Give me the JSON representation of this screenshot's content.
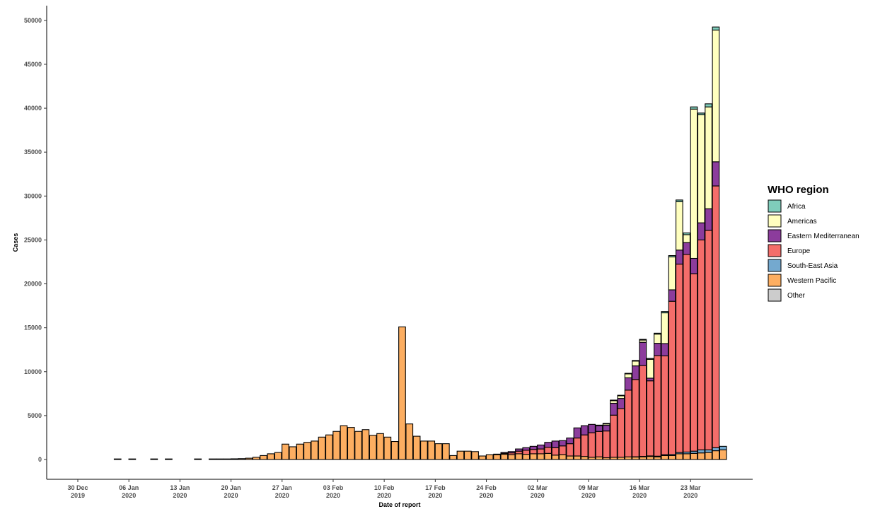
{
  "chart_data": {
    "type": "bar",
    "stacked": true,
    "xlabel": "Date of report",
    "ylabel": "Cases",
    "ylim": [
      0,
      52000
    ],
    "y_ticks": [
      0,
      5000,
      10000,
      15000,
      20000,
      25000,
      30000,
      35000,
      40000,
      45000,
      50000
    ],
    "x_ticks": [
      {
        "day": 0,
        "line1": "30 Dec",
        "line2": "2019"
      },
      {
        "day": 7,
        "line1": "06 Jan",
        "line2": "2020"
      },
      {
        "day": 14,
        "line1": "13 Jan",
        "line2": "2020"
      },
      {
        "day": 21,
        "line1": "20 Jan",
        "line2": "2020"
      },
      {
        "day": 28,
        "line1": "27 Jan",
        "line2": "2020"
      },
      {
        "day": 35,
        "line1": "03 Feb",
        "line2": "2020"
      },
      {
        "day": 42,
        "line1": "10 Feb",
        "line2": "2020"
      },
      {
        "day": 49,
        "line1": "17 Feb",
        "line2": "2020"
      },
      {
        "day": 56,
        "line1": "24 Feb",
        "line2": "2020"
      },
      {
        "day": 63,
        "line1": "02 Mar",
        "line2": "2020"
      },
      {
        "day": 70,
        "line1": "09 Mar",
        "line2": "2020"
      },
      {
        "day": 77,
        "line1": "16 Mar",
        "line2": "2020"
      },
      {
        "day": 84,
        "line1": "23 Mar",
        "line2": "2020"
      }
    ],
    "legend": {
      "title": "WHO region",
      "position": "right",
      "entries": [
        "Africa",
        "Americas",
        "Eastern Mediterranean",
        "Europe",
        "South-East Asia",
        "Western Pacific",
        "Other"
      ]
    },
    "colors": {
      "Africa": "#7fcdbb",
      "Americas": "#ffffbf",
      "Eastern Mediterranean": "#8c3c9c",
      "Europe": "#f46d6a",
      "South-East Asia": "#74a9cf",
      "Western Pacific": "#fdae61",
      "Other": "#cccccc"
    },
    "stack_order": [
      "Western Pacific",
      "South-East Asia",
      "Europe",
      "Eastern Mediterranean",
      "Americas",
      "Africa",
      "Other"
    ],
    "series_days": [
      4,
      6,
      9,
      11,
      15,
      17,
      18,
      19,
      20,
      21,
      22,
      23,
      24,
      25,
      26,
      27,
      28,
      29,
      30,
      31,
      32,
      33,
      34,
      35,
      36,
      37,
      38,
      39,
      40,
      41,
      42,
      43,
      44,
      45,
      46,
      47,
      48,
      49,
      50,
      51,
      52,
      53,
      54,
      55,
      56,
      57,
      58,
      59,
      60,
      61,
      62,
      63,
      64,
      65,
      66,
      67,
      68,
      69,
      70,
      71,
      72,
      73,
      74,
      75,
      76,
      77,
      78,
      79,
      80,
      81,
      82,
      83,
      84,
      85,
      86,
      87
    ],
    "series": [
      {
        "name": "Western Pacific",
        "values": [
          3,
          3,
          5,
          5,
          5,
          20,
          30,
          50,
          80,
          100,
          150,
          250,
          450,
          650,
          800,
          1750,
          1450,
          1750,
          1950,
          2100,
          2550,
          2800,
          3200,
          3850,
          3650,
          3200,
          3400,
          2750,
          2950,
          2550,
          2050,
          15100,
          4050,
          2650,
          2100,
          2100,
          1800,
          1800,
          450,
          950,
          950,
          900,
          400,
          550,
          550,
          600,
          550,
          650,
          600,
          650,
          650,
          700,
          500,
          550,
          400,
          400,
          350,
          250,
          300,
          200,
          250,
          250,
          300,
          280,
          300,
          350,
          300,
          450,
          450,
          650,
          650,
          700,
          750,
          800,
          1000,
          1100
        ]
      },
      {
        "name": "South-East Asia",
        "values": [
          0,
          0,
          0,
          0,
          0,
          0,
          0,
          0,
          0,
          0,
          0,
          0,
          0,
          0,
          0,
          0,
          0,
          0,
          0,
          0,
          0,
          0,
          0,
          0,
          0,
          0,
          0,
          0,
          0,
          0,
          0,
          0,
          0,
          0,
          0,
          0,
          0,
          0,
          0,
          0,
          0,
          0,
          0,
          0,
          0,
          0,
          0,
          0,
          0,
          0,
          0,
          0,
          0,
          0,
          0,
          0,
          0,
          0,
          0,
          0,
          0,
          0,
          0,
          30,
          50,
          60,
          80,
          100,
          120,
          150,
          200,
          250,
          350,
          300,
          350,
          400
        ]
      },
      {
        "name": "Europe",
        "values": [
          0,
          0,
          0,
          0,
          0,
          0,
          0,
          0,
          0,
          0,
          0,
          0,
          0,
          0,
          0,
          0,
          0,
          0,
          0,
          0,
          0,
          0,
          0,
          0,
          0,
          0,
          0,
          0,
          0,
          0,
          0,
          0,
          0,
          0,
          0,
          0,
          0,
          0,
          0,
          0,
          0,
          0,
          0,
          0,
          0,
          100,
          200,
          300,
          450,
          500,
          550,
          700,
          850,
          1000,
          1400,
          2050,
          2450,
          2800,
          2900,
          3050,
          4800,
          5550,
          7600,
          8800,
          10350,
          8550,
          11450,
          11250,
          17450,
          21450,
          22500,
          20200,
          23900,
          25000,
          29800
        ]
      },
      {
        "name": "Eastern Mediterranean",
        "values": [
          0,
          0,
          0,
          0,
          0,
          0,
          0,
          0,
          0,
          0,
          0,
          0,
          0,
          0,
          0,
          0,
          0,
          0,
          0,
          0,
          0,
          0,
          0,
          0,
          0,
          0,
          0,
          0,
          0,
          0,
          0,
          0,
          0,
          0,
          0,
          0,
          0,
          0,
          0,
          0,
          0,
          0,
          0,
          0,
          50,
          100,
          150,
          250,
          300,
          350,
          450,
          550,
          750,
          600,
          650,
          1150,
          1050,
          950,
          650,
          650,
          1350,
          1150,
          1400,
          1550,
          2650,
          300,
          1400,
          1400,
          1300,
          1600,
          1350,
          1750,
          1950,
          2450,
          2750
        ]
      },
      {
        "name": "Americas",
        "values": [
          0,
          0,
          0,
          0,
          0,
          0,
          0,
          0,
          0,
          0,
          0,
          0,
          0,
          0,
          0,
          0,
          0,
          0,
          0,
          0,
          0,
          0,
          0,
          0,
          0,
          0,
          0,
          0,
          0,
          0,
          0,
          0,
          0,
          0,
          0,
          0,
          0,
          0,
          0,
          0,
          0,
          0,
          0,
          0,
          0,
          0,
          0,
          0,
          0,
          0,
          0,
          0,
          0,
          0,
          0,
          0,
          0,
          0,
          0,
          150,
          300,
          300,
          450,
          550,
          250,
          2150,
          1050,
          3500,
          3750,
          5500,
          900,
          17000,
          12300,
          11600,
          15000
        ]
      },
      {
        "name": "Africa",
        "values": [
          0,
          0,
          0,
          0,
          0,
          0,
          0,
          0,
          0,
          0,
          0,
          0,
          0,
          0,
          0,
          0,
          0,
          0,
          0,
          0,
          0,
          0,
          0,
          0,
          0,
          0,
          0,
          0,
          0,
          0,
          0,
          0,
          0,
          0,
          0,
          0,
          0,
          0,
          0,
          0,
          0,
          0,
          0,
          0,
          0,
          0,
          0,
          0,
          0,
          0,
          0,
          0,
          0,
          0,
          0,
          0,
          0,
          0,
          10,
          10,
          20,
          30,
          40,
          50,
          80,
          100,
          100,
          150,
          150,
          200,
          200,
          250,
          200,
          350,
          350
        ]
      },
      {
        "name": "Other",
        "values": [
          0,
          0,
          0,
          0,
          0,
          0,
          0,
          0,
          0,
          0,
          0,
          0,
          0,
          0,
          0,
          0,
          0,
          0,
          0,
          0,
          0,
          0,
          0,
          0,
          0,
          0,
          0,
          0,
          0,
          0,
          0,
          0,
          0,
          0,
          0,
          0,
          0,
          0,
          0,
          0,
          0,
          0,
          0,
          0,
          0,
          0,
          0,
          0,
          0,
          0,
          0,
          0,
          0,
          0,
          0,
          0,
          0,
          0,
          0,
          0,
          0,
          0,
          0,
          0,
          0,
          0,
          0,
          0,
          0,
          0,
          0,
          0,
          0,
          0,
          0,
          0
        ]
      }
    ]
  }
}
